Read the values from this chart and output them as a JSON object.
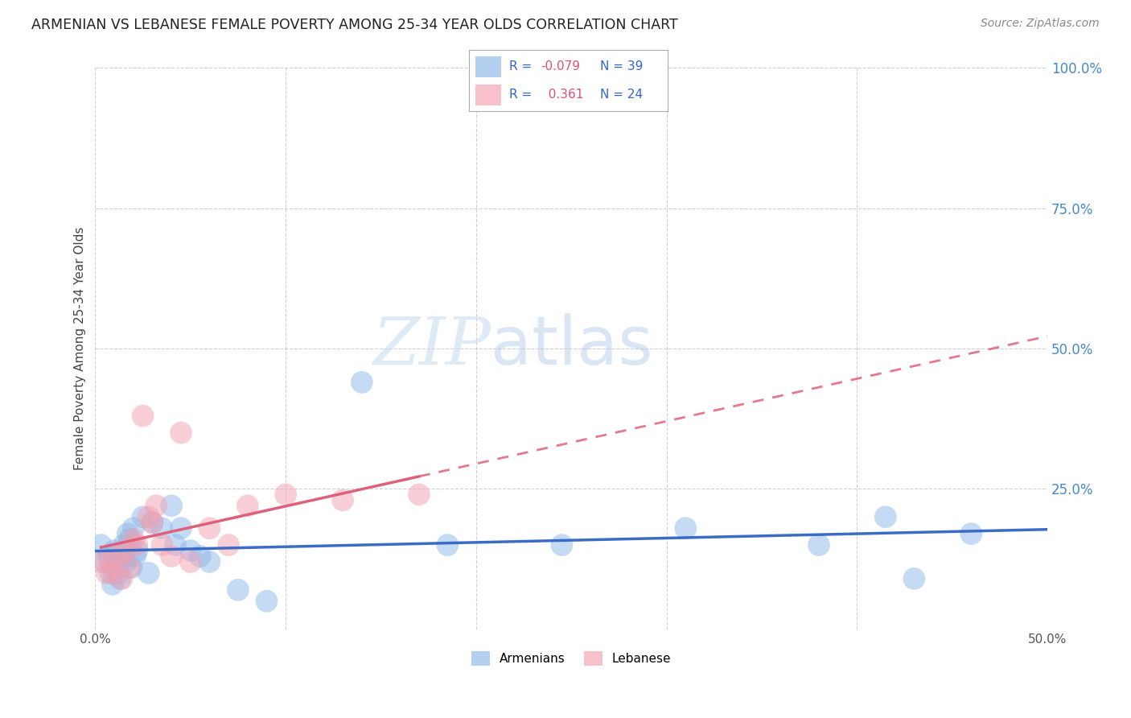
{
  "title": "ARMENIAN VS LEBANESE FEMALE POVERTY AMONG 25-34 YEAR OLDS CORRELATION CHART",
  "source": "Source: ZipAtlas.com",
  "ylabel": "Female Poverty Among 25-34 Year Olds",
  "xlim": [
    0.0,
    0.5
  ],
  "ylim": [
    0.0,
    1.0
  ],
  "xticks": [
    0.0,
    0.1,
    0.2,
    0.3,
    0.4,
    0.5
  ],
  "xtick_labels": [
    "0.0%",
    "",
    "",
    "",
    "",
    "50.0%"
  ],
  "yticks": [
    0.0,
    0.25,
    0.5,
    0.75,
    1.0
  ],
  "ytick_labels": [
    "",
    "25.0%",
    "50.0%",
    "75.0%",
    "100.0%"
  ],
  "armenian_R": -0.079,
  "armenian_N": 39,
  "lebanese_R": 0.361,
  "lebanese_N": 24,
  "armenian_color": "#8DB8E8",
  "lebanese_color": "#F4A0B0",
  "armenian_line_color": "#3B6CC5",
  "lebanese_line_color": "#E0607A",
  "background_color": "#FFFFFF",
  "grid_color": "#CCCCCC",
  "watermark_zip": "ZIP",
  "watermark_atlas": "atlas",
  "armenian_x": [
    0.003,
    0.005,
    0.007,
    0.008,
    0.009,
    0.01,
    0.01,
    0.011,
    0.012,
    0.013,
    0.014,
    0.015,
    0.016,
    0.017,
    0.018,
    0.019,
    0.02,
    0.021,
    0.022,
    0.025,
    0.028,
    0.03,
    0.035,
    0.04,
    0.042,
    0.045,
    0.05,
    0.055,
    0.06,
    0.075,
    0.09,
    0.14,
    0.185,
    0.245,
    0.31,
    0.38,
    0.415,
    0.43,
    0.46
  ],
  "armenian_y": [
    0.15,
    0.12,
    0.13,
    0.1,
    0.08,
    0.14,
    0.12,
    0.11,
    0.1,
    0.09,
    0.13,
    0.15,
    0.12,
    0.17,
    0.16,
    0.11,
    0.18,
    0.13,
    0.14,
    0.2,
    0.1,
    0.19,
    0.18,
    0.22,
    0.15,
    0.18,
    0.14,
    0.13,
    0.12,
    0.07,
    0.05,
    0.44,
    0.15,
    0.15,
    0.18,
    0.15,
    0.2,
    0.09,
    0.17
  ],
  "lebanese_x": [
    0.003,
    0.006,
    0.008,
    0.01,
    0.012,
    0.014,
    0.016,
    0.018,
    0.02,
    0.022,
    0.025,
    0.028,
    0.03,
    0.032,
    0.035,
    0.04,
    0.045,
    0.05,
    0.06,
    0.07,
    0.08,
    0.1,
    0.13,
    0.17
  ],
  "lebanese_y": [
    0.12,
    0.1,
    0.12,
    0.1,
    0.13,
    0.09,
    0.14,
    0.11,
    0.16,
    0.15,
    0.38,
    0.2,
    0.19,
    0.22,
    0.15,
    0.13,
    0.35,
    0.12,
    0.18,
    0.15,
    0.22,
    0.24,
    0.23,
    0.24
  ]
}
